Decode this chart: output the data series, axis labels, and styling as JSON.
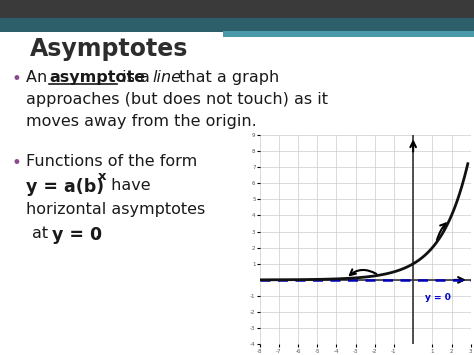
{
  "title": "Asymptotes",
  "title_color": "#2d2d2d",
  "header_bar_color": "#2d5f6b",
  "header_bar2_color": "#4a9aaa",
  "bg_color": "#ffffff",
  "top_bar_color": "#3a3a3a",
  "bullet_color": "#8b4a8b",
  "text_color": "#1a1a1a",
  "asymptote_label": "y = 0",
  "asymptote_label_color": "#0000cc",
  "asymptote_line_color": "#0000bb",
  "curve_color": "#111111",
  "grid_color": "#cccccc",
  "axis_color": "#333333",
  "graph_bg": "#ffffff",
  "xlim": [
    -8,
    3
  ],
  "ylim": [
    -4,
    9
  ],
  "title_fontsize": 17,
  "body_fontsize": 11.5
}
